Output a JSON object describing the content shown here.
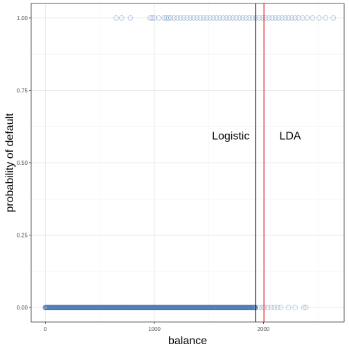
{
  "chart_data": {
    "type": "scatter",
    "xlabel": "balance",
    "ylabel": "probability of default",
    "xlim": [
      -130,
      2740
    ],
    "ylim": [
      -0.05,
      1.05
    ],
    "x_ticks": [
      0,
      1000,
      2000
    ],
    "x_tick_labels": [
      "0",
      "1000",
      "2000"
    ],
    "y_ticks": [
      0,
      0.25,
      0.5,
      0.75,
      1
    ],
    "y_tick_labels": [
      "0.00",
      "0.25",
      "0.50",
      "0.75",
      "1.00"
    ],
    "x_minor_ticks": [
      500,
      1500,
      2500
    ],
    "y_minor_ticks": [
      0.125,
      0.375,
      0.625,
      0.875
    ],
    "grid": true,
    "point_color": "#4a79b0",
    "annotations": [
      {
        "text": "Logistic",
        "x": 1700,
        "y": 0.595
      },
      {
        "text": "LDA",
        "x": 2245,
        "y": 0.595
      }
    ],
    "vlines": [
      {
        "name": "logistic-threshold-line",
        "x": 1930,
        "color": "#000000"
      },
      {
        "name": "lda-threshold-line",
        "x": 2005,
        "color": "#e31a1c"
      }
    ],
    "series": [
      {
        "y": 1,
        "x": [
          650,
          700,
          780,
          960,
          980,
          1000,
          1040,
          1090,
          1110,
          1130,
          1150,
          1180,
          1210,
          1240,
          1270,
          1300,
          1330,
          1360,
          1390,
          1420,
          1450,
          1480,
          1510,
          1540,
          1570,
          1600,
          1630,
          1660,
          1690,
          1720,
          1750,
          1780,
          1810,
          1840,
          1870,
          1900,
          1930,
          1960,
          1990,
          2020,
          2050,
          2080,
          2110,
          2140,
          2170,
          2200,
          2230,
          2260,
          2290,
          2320,
          2360,
          2400,
          2450,
          2510,
          2570,
          2640
        ]
      },
      {
        "y": 0,
        "x_range_dense": [
          0,
          1930
        ],
        "x": [
          1960,
          1985,
          2010,
          2040,
          2070,
          2100,
          2130,
          2160,
          2230,
          2290,
          2370,
          2390
        ]
      }
    ]
  }
}
